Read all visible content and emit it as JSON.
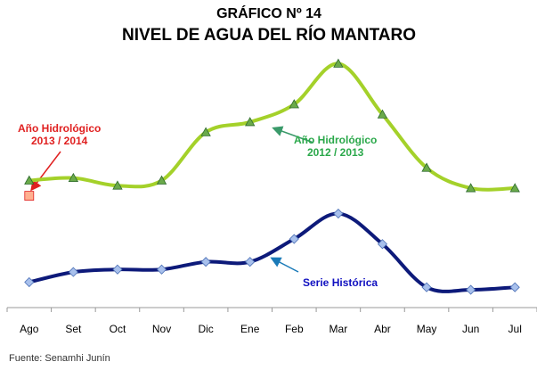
{
  "chart_data": {
    "type": "line",
    "title": "GRÁFICO Nº 14",
    "subtitle": "NIVEL DE AGUA DEL RÍO MANTARO",
    "source": "Fuente: Senamhi Junín",
    "categories": [
      "Ago",
      "Set",
      "Oct",
      "Nov",
      "Dic",
      "Ene",
      "Feb",
      "Mar",
      "Abr",
      "May",
      "Jun",
      "Jul"
    ],
    "ylim": [
      0,
      100
    ],
    "series": [
      {
        "name": "Año Hidrológico\n2012 / 2013",
        "color": "#a4d12a",
        "marker": "triangle",
        "marker_color": "#6aaa4a",
        "values": [
          50,
          51,
          48,
          50,
          69,
          73,
          80,
          96,
          76,
          55,
          47,
          47
        ]
      },
      {
        "name": "Serie Histórica",
        "color": "#0d1a7a",
        "marker": "diamond",
        "marker_color": "#a8c0ec",
        "values": [
          10,
          14,
          15,
          15,
          18,
          18,
          27,
          37,
          25,
          8,
          7,
          8
        ]
      },
      {
        "name": "Año Hidrológico\n2013 / 2014",
        "color": "#e02020",
        "marker": "square",
        "marker_color": "#ffb090",
        "values": [
          44,
          null,
          null,
          null,
          null,
          null,
          null,
          null,
          null,
          null,
          null,
          null
        ]
      }
    ]
  }
}
